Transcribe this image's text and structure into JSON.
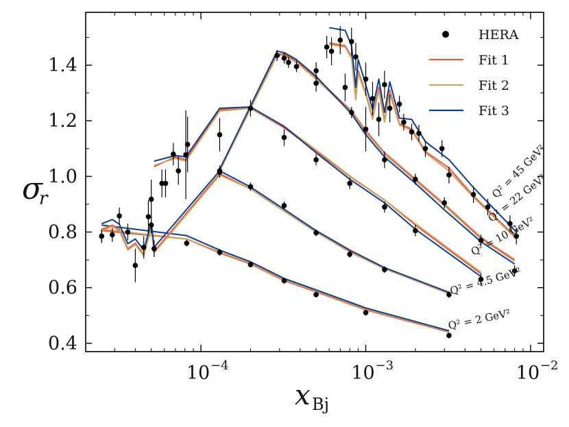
{
  "chart_data": {
    "type": "line",
    "xscale": "log",
    "xlim": [
      2e-05,
      0.012
    ],
    "ylim": [
      0.37,
      1.59
    ],
    "xlabel_main": "x",
    "xlabel_sub": "Bj",
    "ylabel_main": "σ",
    "ylabel_sub": "r",
    "yticks": [
      "0.4",
      "0.6",
      "0.8",
      "1.0",
      "1.2",
      "1.4"
    ],
    "ytick_values": [
      0.4,
      0.6,
      0.8,
      1.0,
      1.2,
      1.4
    ],
    "xtick_values": [
      0.0001,
      0.001,
      0.01
    ],
    "xtick_base": [
      "10",
      "10",
      "10"
    ],
    "xtick_exp": [
      "−4",
      "−3",
      "−2"
    ],
    "legend": {
      "placement": "top-right",
      "entries": [
        {
          "label": "HERA",
          "kind": "marker",
          "color": "#000000"
        },
        {
          "label": "Fit 1",
          "kind": "line",
          "color": "#e9573f"
        },
        {
          "label": "Fit 2",
          "kind": "line",
          "color": "#c9a25f"
        },
        {
          "label": "Fit 3",
          "kind": "line",
          "color": "#0b3d91"
        }
      ]
    },
    "groups": [
      {
        "name": "Q2 = 2",
        "label_main": "Q² = 2 GeV²",
        "label_pos": [
          0.0032,
          0.45
        ],
        "label_rot": -12,
        "data": [
          {
            "x": 2.5e-05,
            "y": 0.785,
            "e": 0.02
          },
          {
            "x": 8.2e-05,
            "y": 0.76,
            "e": 0.012
          },
          {
            "x": 0.00013,
            "y": 0.727,
            "e": 0.012
          },
          {
            "x": 0.0002,
            "y": 0.683,
            "e": 0.01
          },
          {
            "x": 0.00032,
            "y": 0.625,
            "e": 0.01
          },
          {
            "x": 0.0005,
            "y": 0.575,
            "e": 0.01
          },
          {
            "x": 0.001,
            "y": 0.51,
            "e": 0.01
          },
          {
            "x": 0.0032,
            "y": 0.428,
            "e": 0.01
          }
        ],
        "fits": [
          {
            "x": [
              2.5e-05,
              8.2e-05,
              0.00013,
              0.0002,
              0.00032,
              0.0005,
              0.001,
              0.0032
            ],
            "y": [
              0.805,
              0.775,
              0.725,
              0.685,
              0.625,
              0.585,
              0.52,
              0.44
            ]
          },
          {
            "x": [
              2.5e-05,
              8.2e-05,
              0.00013,
              0.0002,
              0.00032,
              0.0005,
              0.001,
              0.0032
            ],
            "y": [
              0.81,
              0.775,
              0.728,
              0.688,
              0.628,
              0.588,
              0.523,
              0.442
            ]
          },
          {
            "x": [
              2.5e-05,
              8.2e-05,
              0.00013,
              0.0002,
              0.00032,
              0.0005,
              0.001,
              0.0032
            ],
            "y": [
              0.825,
              0.787,
              0.735,
              0.693,
              0.633,
              0.592,
              0.527,
              0.445
            ]
          }
        ]
      },
      {
        "name": "Q2 = 4.5",
        "label_main": "Q² = 4.5 GeV²",
        "label_pos": [
          0.0033,
          0.575
        ],
        "label_rot": -16,
        "data": [
          {
            "x": 2.5e-05,
            "y": 0.785,
            "e": 0.025
          },
          {
            "x": 2.9e-05,
            "y": 0.79,
            "e": 0.025
          },
          {
            "x": 3.2e-05,
            "y": 0.858,
            "e": 0.03
          },
          {
            "x": 3.6e-05,
            "y": 0.8,
            "e": 0.03
          },
          {
            "x": 4e-05,
            "y": 0.68,
            "e": 0.06
          },
          {
            "x": 4.5e-05,
            "y": 0.745,
            "e": 0.04
          },
          {
            "x": 5e-05,
            "y": 0.825,
            "e": 0.03
          },
          {
            "x": 5.2e-05,
            "y": 0.74,
            "e": 0.03
          },
          {
            "x": 0.00013,
            "y": 1.015,
            "e": 0.02
          },
          {
            "x": 0.0002,
            "y": 0.963,
            "e": 0.015
          },
          {
            "x": 0.00032,
            "y": 0.895,
            "e": 0.015
          },
          {
            "x": 0.0005,
            "y": 0.797,
            "e": 0.012
          },
          {
            "x": 0.0008,
            "y": 0.72,
            "e": 0.012
          },
          {
            "x": 0.0013,
            "y": 0.665,
            "e": 0.012
          },
          {
            "x": 0.0032,
            "y": 0.575,
            "e": 0.012
          }
        ],
        "fits": [
          {
            "x": [
              2.5e-05,
              2.9e-05,
              3.2e-05,
              3.6e-05,
              4e-05,
              4.5e-05,
              5e-05,
              5.2e-05,
              0.00013,
              0.0002,
              0.00032,
              0.0005,
              0.0008,
              0.0013,
              0.0032
            ],
            "y": [
              0.81,
              0.825,
              0.81,
              0.74,
              0.76,
              0.72,
              0.82,
              0.73,
              1.01,
              0.955,
              0.875,
              0.8,
              0.73,
              0.67,
              0.58
            ]
          },
          {
            "x": [
              2.5e-05,
              2.9e-05,
              3.2e-05,
              3.6e-05,
              4e-05,
              4.5e-05,
              5e-05,
              5.2e-05,
              0.00013,
              0.0002,
              0.00032,
              0.0005,
              0.0008,
              0.0013,
              0.0032
            ],
            "y": [
              0.805,
              0.82,
              0.805,
              0.735,
              0.755,
              0.715,
              0.815,
              0.725,
              1.005,
              0.955,
              0.875,
              0.8,
              0.728,
              0.668,
              0.578
            ]
          },
          {
            "x": [
              2.5e-05,
              2.9e-05,
              3.2e-05,
              3.6e-05,
              4e-05,
              4.5e-05,
              5e-05,
              5.2e-05,
              0.00013,
              0.0002,
              0.00032,
              0.0005,
              0.0008,
              0.0013,
              0.0032
            ],
            "y": [
              0.83,
              0.845,
              0.828,
              0.758,
              0.775,
              0.735,
              0.835,
              0.745,
              1.02,
              0.962,
              0.882,
              0.805,
              0.735,
              0.672,
              0.583
            ]
          }
        ]
      },
      {
        "name": "Q2 = 10",
        "label_main": "Q² = 10 GeV²",
        "label_pos": [
          0.0045,
          0.715
        ],
        "label_rot": -28,
        "data": [
          {
            "x": 4.8e-05,
            "y": 0.855,
            "e": 0.06
          },
          {
            "x": 5e-05,
            "y": 0.918,
            "e": 0.07
          },
          {
            "x": 5.8e-05,
            "y": 0.975,
            "e": 0.05
          },
          {
            "x": 6.1e-05,
            "y": 0.975,
            "e": 0.05
          },
          {
            "x": 6.8e-05,
            "y": 1.08,
            "e": 0.04
          },
          {
            "x": 7.3e-05,
            "y": 1.02,
            "e": 0.05
          },
          {
            "x": 8.1e-05,
            "y": 1.078,
            "e": 0.16
          },
          {
            "x": 8.3e-05,
            "y": 1.115,
            "e": 0.1
          },
          {
            "x": 0.00013,
            "y": 1.15,
            "e": 0.06
          },
          {
            "x": 0.0002,
            "y": 1.245,
            "e": 0.03
          },
          {
            "x": 0.00032,
            "y": 1.14,
            "e": 0.03
          },
          {
            "x": 0.0005,
            "y": 1.06,
            "e": 0.02
          },
          {
            "x": 0.0008,
            "y": 0.975,
            "e": 0.02
          },
          {
            "x": 0.0013,
            "y": 0.89,
            "e": 0.02
          },
          {
            "x": 0.002,
            "y": 0.805,
            "e": 0.02
          },
          {
            "x": 0.005,
            "y": 0.63,
            "e": 0.02
          }
        ],
        "fits": [
          {
            "x": [
              5.2e-05,
              7e-05,
              8.1e-05,
              0.00013,
              0.0002,
              0.00032,
              0.0005,
              0.0008,
              0.0013,
              0.002,
              0.005
            ],
            "y": [
              1.035,
              1.07,
              1.06,
              1.24,
              1.245,
              1.175,
              1.09,
              1.0,
              0.915,
              0.825,
              0.65
            ]
          },
          {
            "x": [
              5.2e-05,
              7e-05,
              8.1e-05,
              0.00013,
              0.0002,
              0.00032,
              0.0005,
              0.0008,
              0.0013,
              0.002,
              0.005
            ],
            "y": [
              1.04,
              1.065,
              1.055,
              1.235,
              1.245,
              1.18,
              1.095,
              1.002,
              0.915,
              0.83,
              0.655
            ]
          },
          {
            "x": [
              5.2e-05,
              7e-05,
              8.1e-05,
              0.00013,
              0.0002,
              0.00032,
              0.0005,
              0.0008,
              0.0013,
              0.002,
              0.005
            ],
            "y": [
              1.055,
              1.075,
              1.07,
              1.245,
              1.25,
              1.18,
              1.085,
              0.99,
              0.905,
              0.81,
              0.64
            ]
          }
        ]
      },
      {
        "name": "Q2 = 22",
        "label_main": "Q² = 22 GeV²",
        "label_pos": [
          0.0058,
          0.835
        ],
        "label_rot": -38,
        "data": [
          {
            "x": 0.00013,
            "y": 1.02,
            "e": 0.02
          },
          {
            "x": 0.00029,
            "y": 1.435,
            "e": 0.02
          },
          {
            "x": 0.00032,
            "y": 1.425,
            "e": 0.02
          },
          {
            "x": 0.00034,
            "y": 1.41,
            "e": 0.02
          },
          {
            "x": 0.00038,
            "y": 1.395,
            "e": 0.02
          },
          {
            "x": 0.0005,
            "y": 1.335,
            "e": 0.03
          },
          {
            "x": 0.00082,
            "y": 1.23,
            "e": 0.02
          },
          {
            "x": 0.001,
            "y": 1.17,
            "e": 0.08
          },
          {
            "x": 0.0013,
            "y": 1.06,
            "e": 0.03
          },
          {
            "x": 0.002,
            "y": 0.99,
            "e": 0.02
          },
          {
            "x": 0.003,
            "y": 0.905,
            "e": 0.02
          },
          {
            "x": 0.005,
            "y": 0.77,
            "e": 0.02
          },
          {
            "x": 0.008,
            "y": 0.66,
            "e": 0.02
          }
        ],
        "fits": [
          {
            "x": [
              0.00013,
              0.00029,
              0.00032,
              0.00038,
              0.0005,
              0.00082,
              0.001,
              0.0013,
              0.002,
              0.003,
              0.005,
              0.008
            ],
            "y": [
              1.025,
              1.44,
              1.44,
              1.415,
              1.355,
              1.235,
              1.165,
              1.085,
              0.99,
              0.9,
              0.78,
              0.7
            ]
          },
          {
            "x": [
              0.00013,
              0.00029,
              0.00032,
              0.00038,
              0.0005,
              0.00082,
              0.001,
              0.0013,
              0.002,
              0.003,
              0.005,
              0.008
            ],
            "y": [
              1.02,
              1.435,
              1.435,
              1.41,
              1.35,
              1.23,
              1.16,
              1.08,
              0.985,
              0.895,
              0.775,
              0.695
            ]
          },
          {
            "x": [
              0.00013,
              0.00029,
              0.00032,
              0.00038,
              0.0005,
              0.00082,
              0.001,
              0.0013,
              0.002,
              0.003,
              0.005,
              0.008
            ],
            "y": [
              1.025,
              1.45,
              1.445,
              1.42,
              1.36,
              1.225,
              1.15,
              1.07,
              0.975,
              0.88,
              0.765,
              0.685
            ]
          }
        ]
      },
      {
        "name": "Q2 = 45",
        "label_main": "Q² = 45 GeV²",
        "label_pos": [
          0.0062,
          0.92
        ],
        "label_rot": -45,
        "data": [
          {
            "x": 0.0005,
            "y": 1.38,
            "e": 0.03
          },
          {
            "x": 0.00058,
            "y": 1.465,
            "e": 0.04
          },
          {
            "x": 0.00062,
            "y": 1.45,
            "e": 0.05
          },
          {
            "x": 0.0007,
            "y": 1.49,
            "e": 0.05
          },
          {
            "x": 0.00075,
            "y": 1.32,
            "e": 0.05
          },
          {
            "x": 0.00082,
            "y": 1.485,
            "e": 0.05
          },
          {
            "x": 0.00087,
            "y": 1.43,
            "e": 0.05
          },
          {
            "x": 0.001,
            "y": 1.35,
            "e": 0.06
          },
          {
            "x": 0.0011,
            "y": 1.28,
            "e": 0.06
          },
          {
            "x": 0.0012,
            "y": 1.205,
            "e": 0.06
          },
          {
            "x": 0.0013,
            "y": 1.33,
            "e": 0.05
          },
          {
            "x": 0.0014,
            "y": 1.245,
            "e": 0.05
          },
          {
            "x": 0.0016,
            "y": 1.26,
            "e": 0.03
          },
          {
            "x": 0.0017,
            "y": 1.195,
            "e": 0.03
          },
          {
            "x": 0.0019,
            "y": 1.16,
            "e": 0.03
          },
          {
            "x": 0.0021,
            "y": 1.155,
            "e": 0.03
          },
          {
            "x": 0.0023,
            "y": 1.1,
            "e": 0.03
          },
          {
            "x": 0.0029,
            "y": 1.1,
            "e": 0.03
          },
          {
            "x": 0.0032,
            "y": 1.005,
            "e": 0.03
          },
          {
            "x": 0.0045,
            "y": 0.935,
            "e": 0.03
          },
          {
            "x": 0.0055,
            "y": 0.89,
            "e": 0.03
          },
          {
            "x": 0.0075,
            "y": 0.83,
            "e": 0.03
          },
          {
            "x": 0.0082,
            "y": 0.785,
            "e": 0.03
          }
        ],
        "fits": [
          {
            "x": [
              0.0006,
              0.00075,
              0.00082,
              0.00087,
              0.0009,
              0.001,
              0.0011,
              0.0012,
              0.0013,
              0.0014,
              0.0016,
              0.0019,
              0.0023,
              0.0032,
              0.0045,
              0.0082
            ],
            "y": [
              1.48,
              1.47,
              1.43,
              1.28,
              1.38,
              1.3,
              1.21,
              1.32,
              1.2,
              1.31,
              1.19,
              1.17,
              1.09,
              1.03,
              0.93,
              0.78
            ]
          },
          {
            "x": [
              0.0006,
              0.00075,
              0.00082,
              0.00087,
              0.0009,
              0.001,
              0.0011,
              0.0012,
              0.0013,
              0.0014,
              0.0016,
              0.0019,
              0.0023,
              0.0032,
              0.0045,
              0.0082
            ],
            "y": [
              1.475,
              1.465,
              1.425,
              1.275,
              1.37,
              1.295,
              1.205,
              1.31,
              1.195,
              1.3,
              1.185,
              1.165,
              1.085,
              1.02,
              0.925,
              0.775
            ]
          },
          {
            "x": [
              0.0006,
              0.00075,
              0.00082,
              0.00087,
              0.0009,
              0.001,
              0.0011,
              0.0012,
              0.0013,
              0.0014,
              0.0016,
              0.0019,
              0.0023,
              0.0032,
              0.0045,
              0.0082
            ],
            "y": [
              1.535,
              1.525,
              1.47,
              1.32,
              1.42,
              1.33,
              1.24,
              1.35,
              1.23,
              1.34,
              1.21,
              1.205,
              1.125,
              1.06,
              0.96,
              0.8
            ]
          }
        ]
      }
    ]
  }
}
